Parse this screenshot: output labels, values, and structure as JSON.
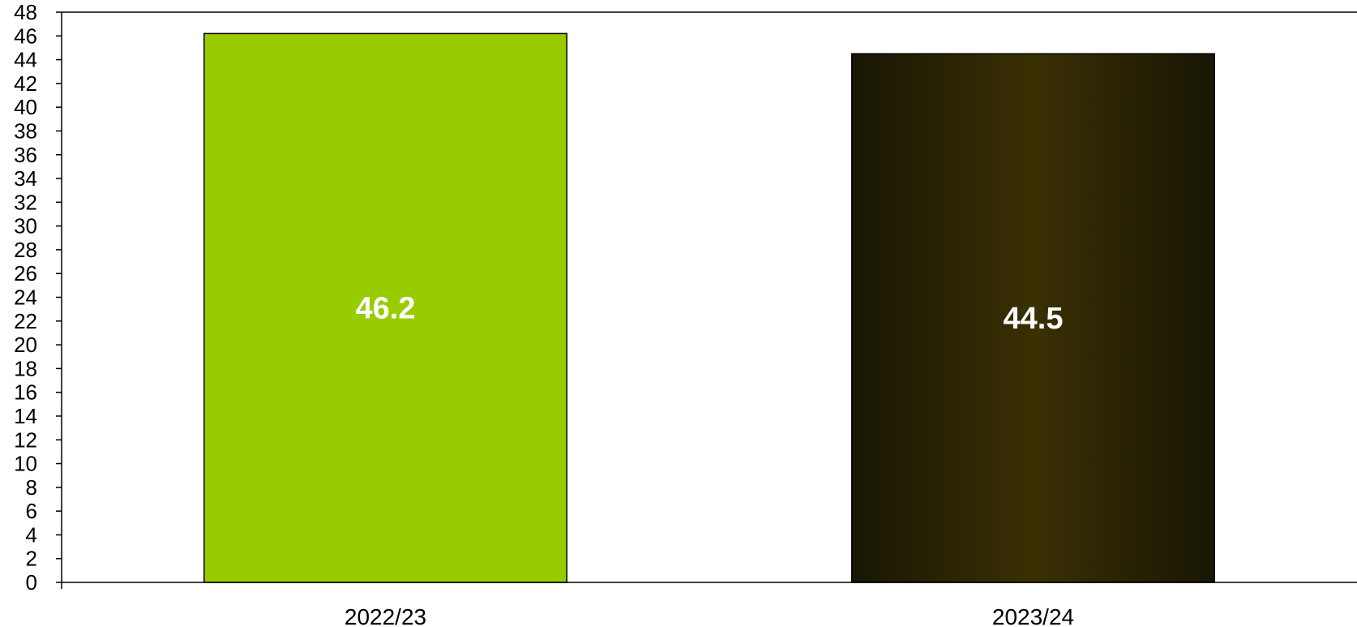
{
  "chart_data": {
    "type": "bar",
    "categories": [
      "2022/23",
      "2023/24"
    ],
    "values": [
      46.2,
      44.5
    ],
    "data_labels": [
      "46.2",
      "44.5"
    ],
    "ylim": [
      0,
      48
    ],
    "ytick_step": 2,
    "yticks": [
      "0",
      "2",
      "4",
      "6",
      "8",
      "10",
      "12",
      "14",
      "16",
      "18",
      "20",
      "22",
      "24",
      "26",
      "28",
      "30",
      "32",
      "34",
      "36",
      "38",
      "40",
      "42",
      "44",
      "46",
      "48"
    ],
    "title": "",
    "xlabel": "",
    "ylabel": "",
    "grid": false,
    "legend": "none",
    "bar_colors": [
      "#99cc00",
      "#3a3004"
    ],
    "bar_edge_color": "#000000",
    "bar_gradient_edge_color": "#181604"
  }
}
